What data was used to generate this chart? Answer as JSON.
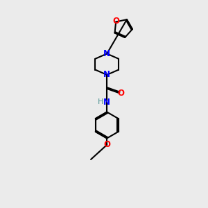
{
  "background_color": "#ebebeb",
  "bond_color": "#000000",
  "N_color": "#0000ff",
  "O_color": "#ff0000",
  "H_color": "#4a9090",
  "figsize": [
    3.0,
    3.0
  ],
  "dpi": 100,
  "xlim": [
    0,
    10
  ],
  "ylim": [
    0,
    14
  ]
}
